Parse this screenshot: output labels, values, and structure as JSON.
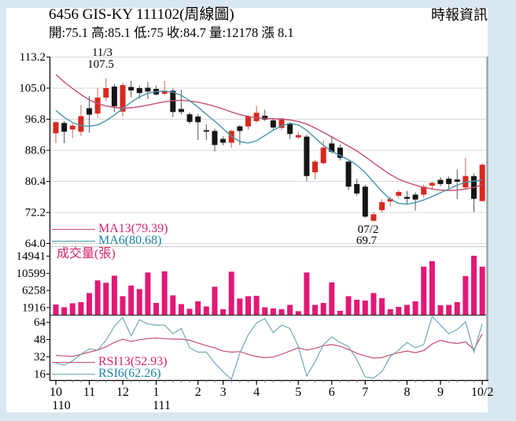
{
  "header": {
    "title": "6456  GIS-KY 111102(周線圖)",
    "source": "時報資訊",
    "info": "開:75.1 高:85.1 低:75 收:84.7 量:12178 漲 8.1"
  },
  "colors": {
    "background": "#d9e7f1",
    "pane": "#ffffff",
    "up_candle": "#d9281e",
    "up_wick": "#c96a58",
    "down_candle": "#151515",
    "down_wick": "#555555",
    "ma13": "#c44e72",
    "ma6": "#4694aa",
    "volume": "#e31876",
    "rsi13": "#c9506e",
    "rsi6": "#6fa8b6",
    "legend_pink": "#d6246e",
    "legend_teal": "#1c82a5"
  },
  "x_axis": {
    "months": [
      {
        "label": "10",
        "index": 0
      },
      {
        "label": "11",
        "index": 4
      },
      {
        "label": "12",
        "index": 8
      },
      {
        "label": "1",
        "index": 12
      },
      {
        "label": "2",
        "index": 17
      },
      {
        "label": "3",
        "index": 20
      },
      {
        "label": "4",
        "index": 24
      },
      {
        "label": "5",
        "index": 29
      },
      {
        "label": "6",
        "index": 33
      },
      {
        "label": "7",
        "index": 37
      },
      {
        "label": "8",
        "index": 42
      },
      {
        "label": "9",
        "index": 46
      },
      {
        "label": "10/2",
        "index": 51
      }
    ],
    "years": [
      {
        "label": "110",
        "index": 0
      },
      {
        "label": "111",
        "index": 12
      }
    ]
  },
  "chart_data": [
    {
      "type": "candlestick",
      "period": "weekly",
      "y_ticks": [
        113.2,
        105.0,
        96.8,
        88.6,
        80.4,
        72.2,
        64.0
      ],
      "ylim": [
        64.0,
        113.2
      ],
      "annotations": [
        {
          "date": "11/3",
          "value": "107.5",
          "index": 6,
          "position": "high"
        },
        {
          "date": "07/2",
          "value": "69.7",
          "index": 38,
          "position": "low"
        }
      ],
      "ma": [
        {
          "name": "MA13",
          "current": 79.39,
          "label": "MA13(79.39)",
          "values": [
            108.5,
            106.5,
            104.8,
            103.2,
            101.8,
            100.8,
            100.2,
            99.8,
            99.6,
            99.7,
            100,
            100.4,
            100.9,
            101.3,
            101.6,
            101.7,
            101.5,
            101.2,
            100.7,
            100.1,
            99.4,
            98.6,
            97.9,
            97.4,
            97.1,
            96.9,
            96.8,
            96.7,
            96.5,
            96.1,
            95.4,
            94.4,
            93.2,
            92,
            90.8,
            89.6,
            88.3,
            86.8,
            85.2,
            83.6,
            82.1,
            80.9,
            80,
            79.3,
            78.7,
            78.3,
            78,
            77.9,
            78,
            78.3,
            78.7,
            79.4
          ]
        },
        {
          "name": "MA6",
          "current": 80.68,
          "label": "MA6(80.68)",
          "values": [
            99,
            97.2,
            95.8,
            95,
            94.8,
            95.2,
            96.3,
            97.8,
            99.5,
            101.2,
            102.6,
            103.5,
            104,
            104.1,
            103.8,
            103,
            101.6,
            99.9,
            98,
            96.2,
            94.2,
            92.2,
            90.8,
            90.4,
            91,
            92.4,
            93.8,
            95,
            95.6,
            95.2,
            93.8,
            91.8,
            89.8,
            88.2,
            87.1,
            86,
            84.6,
            82.6,
            80.1,
            77.6,
            75.6,
            74.5,
            74.3,
            74.7,
            75.4,
            76.3,
            77.3,
            78.3,
            79.3,
            80.1,
            80.4,
            80.7
          ]
        }
      ],
      "candles_ohlc": [
        [
          93.0,
          96.2,
          90.4,
          95.9
        ],
        [
          95.7,
          96.2,
          90.4,
          93.4
        ],
        [
          94.0,
          95.5,
          91.7,
          95.0
        ],
        [
          93.4,
          100.5,
          92.3,
          97.5
        ],
        [
          99.6,
          102.8,
          93.2,
          97.9
        ],
        [
          98.2,
          105.0,
          97.0,
          102.4
        ],
        [
          102.4,
          107.5,
          101.5,
          104.9
        ],
        [
          105.3,
          106.0,
          98.6,
          100.1
        ],
        [
          98.7,
          106.3,
          97.5,
          105.7
        ],
        [
          105.2,
          106.8,
          102.5,
          104.3
        ],
        [
          104.9,
          105.5,
          102.1,
          103.6
        ],
        [
          105.0,
          106.5,
          102.0,
          104.0
        ],
        [
          104.7,
          105.5,
          103.0,
          103.2
        ],
        [
          103.4,
          106.8,
          103.0,
          104.2
        ],
        [
          104.2,
          104.8,
          97.2,
          98.6
        ],
        [
          99.4,
          104.4,
          98.0,
          98.6
        ],
        [
          98.0,
          98.5,
          95.5,
          96.0
        ],
        [
          97.4,
          98.0,
          91.2,
          95.9
        ],
        [
          93.8,
          95.4,
          91.2,
          93.4
        ],
        [
          93.6,
          94.2,
          88.2,
          89.9
        ],
        [
          91.5,
          92.2,
          89.8,
          90.5
        ],
        [
          90.5,
          94.0,
          89.2,
          93.6
        ],
        [
          94.8,
          95.2,
          89.9,
          93.6
        ],
        [
          94.8,
          97.8,
          94.0,
          97.4
        ],
        [
          96.2,
          100.2,
          95.8,
          98.4
        ],
        [
          97.6,
          99.2,
          96.2,
          96.6
        ],
        [
          96.4,
          97.0,
          94.0,
          94.5
        ],
        [
          94.4,
          97.0,
          93.8,
          96.9
        ],
        [
          95.5,
          96.0,
          91.5,
          92.8
        ],
        [
          91.9,
          93.4,
          91.5,
          92.5
        ],
        [
          92.1,
          92.6,
          80.3,
          81.7
        ],
        [
          82.7,
          86.0,
          80.8,
          85.5
        ],
        [
          85.1,
          91.2,
          84.8,
          89.2
        ],
        [
          90.3,
          92.3,
          87.6,
          88.1
        ],
        [
          89.2,
          90.0,
          85.8,
          86.5
        ],
        [
          85.5,
          86.0,
          78.0,
          78.9
        ],
        [
          79.6,
          81.0,
          76.5,
          77.1
        ],
        [
          78.9,
          79.4,
          70.6,
          71.0
        ],
        [
          69.9,
          72.2,
          69.7,
          71.6
        ],
        [
          72.7,
          75.6,
          72.0,
          74.8
        ],
        [
          75.0,
          76.4,
          73.8,
          75.7
        ],
        [
          76.5,
          78.0,
          75.8,
          77.5
        ],
        [
          76.2,
          77.8,
          74.4,
          75.7
        ],
        [
          76.8,
          77.4,
          72.6,
          75.5
        ],
        [
          76.8,
          79.4,
          76.0,
          78.9
        ],
        [
          79.2,
          80.2,
          78.0,
          79.9
        ],
        [
          80.7,
          81.4,
          79.0,
          79.6
        ],
        [
          81.0,
          81.6,
          78.4,
          79.6
        ],
        [
          80.8,
          83.4,
          75.6,
          80.2
        ],
        [
          78.7,
          86.5,
          78.0,
          81.7
        ],
        [
          81.7,
          82.4,
          72.2,
          75.7
        ],
        [
          75.1,
          85.1,
          75.0,
          84.7
        ]
      ]
    },
    {
      "type": "bar",
      "title": "成交量(張)",
      "y_ticks": [
        14941,
        10599,
        6258,
        1916
      ],
      "ylim": [
        0,
        14941
      ],
      "values": [
        2600,
        1900,
        2900,
        3200,
        5500,
        8700,
        8100,
        9900,
        4700,
        7400,
        6500,
        10700,
        3000,
        11000,
        4900,
        2700,
        1500,
        3400,
        2100,
        7100,
        1400,
        10900,
        4100,
        4700,
        4800,
        1900,
        1600,
        1400,
        2500,
        900,
        10700,
        2500,
        3000,
        8200,
        1000,
        4700,
        3800,
        3600,
        5500,
        4200,
        1400,
        2000,
        2500,
        3400,
        12200,
        13600,
        2400,
        2500,
        3200,
        9800,
        14941,
        12178
      ]
    },
    {
      "type": "line",
      "y_ticks": [
        64,
        48,
        32,
        16
      ],
      "ylim": [
        10,
        69
      ],
      "series": [
        {
          "name": "RSI13",
          "current": 52.93,
          "label": "RSI13(52.93)",
          "values": [
            33,
            32.5,
            32,
            34,
            36,
            38,
            41,
            45,
            48,
            46,
            47.5,
            48.5,
            49,
            48.5,
            48,
            48,
            47,
            44.5,
            42,
            40,
            37,
            36,
            36.5,
            34,
            32,
            31,
            31.5,
            34,
            37,
            40,
            38,
            39.5,
            42,
            43,
            41.5,
            38.5,
            35,
            32.5,
            30.5,
            31,
            33.5,
            35.5,
            37,
            35.5,
            37.5,
            43.5,
            47,
            45,
            44,
            45.5,
            38.5,
            52.9
          ]
        },
        {
          "name": "RSI6",
          "current": 62.26,
          "label": "RSI6(62.26)",
          "values": [
            26,
            24,
            28,
            34,
            39,
            38,
            47,
            60,
            68,
            51,
            66,
            62,
            61,
            61,
            53,
            58,
            40,
            36,
            36,
            26,
            18,
            11,
            35,
            52,
            63,
            67,
            54,
            61,
            58,
            41,
            14,
            27,
            43,
            50,
            45,
            41,
            29,
            13,
            12,
            18,
            32,
            38,
            45,
            40,
            43,
            69,
            61,
            53,
            57,
            64,
            36,
            62.3
          ]
        }
      ]
    }
  ]
}
